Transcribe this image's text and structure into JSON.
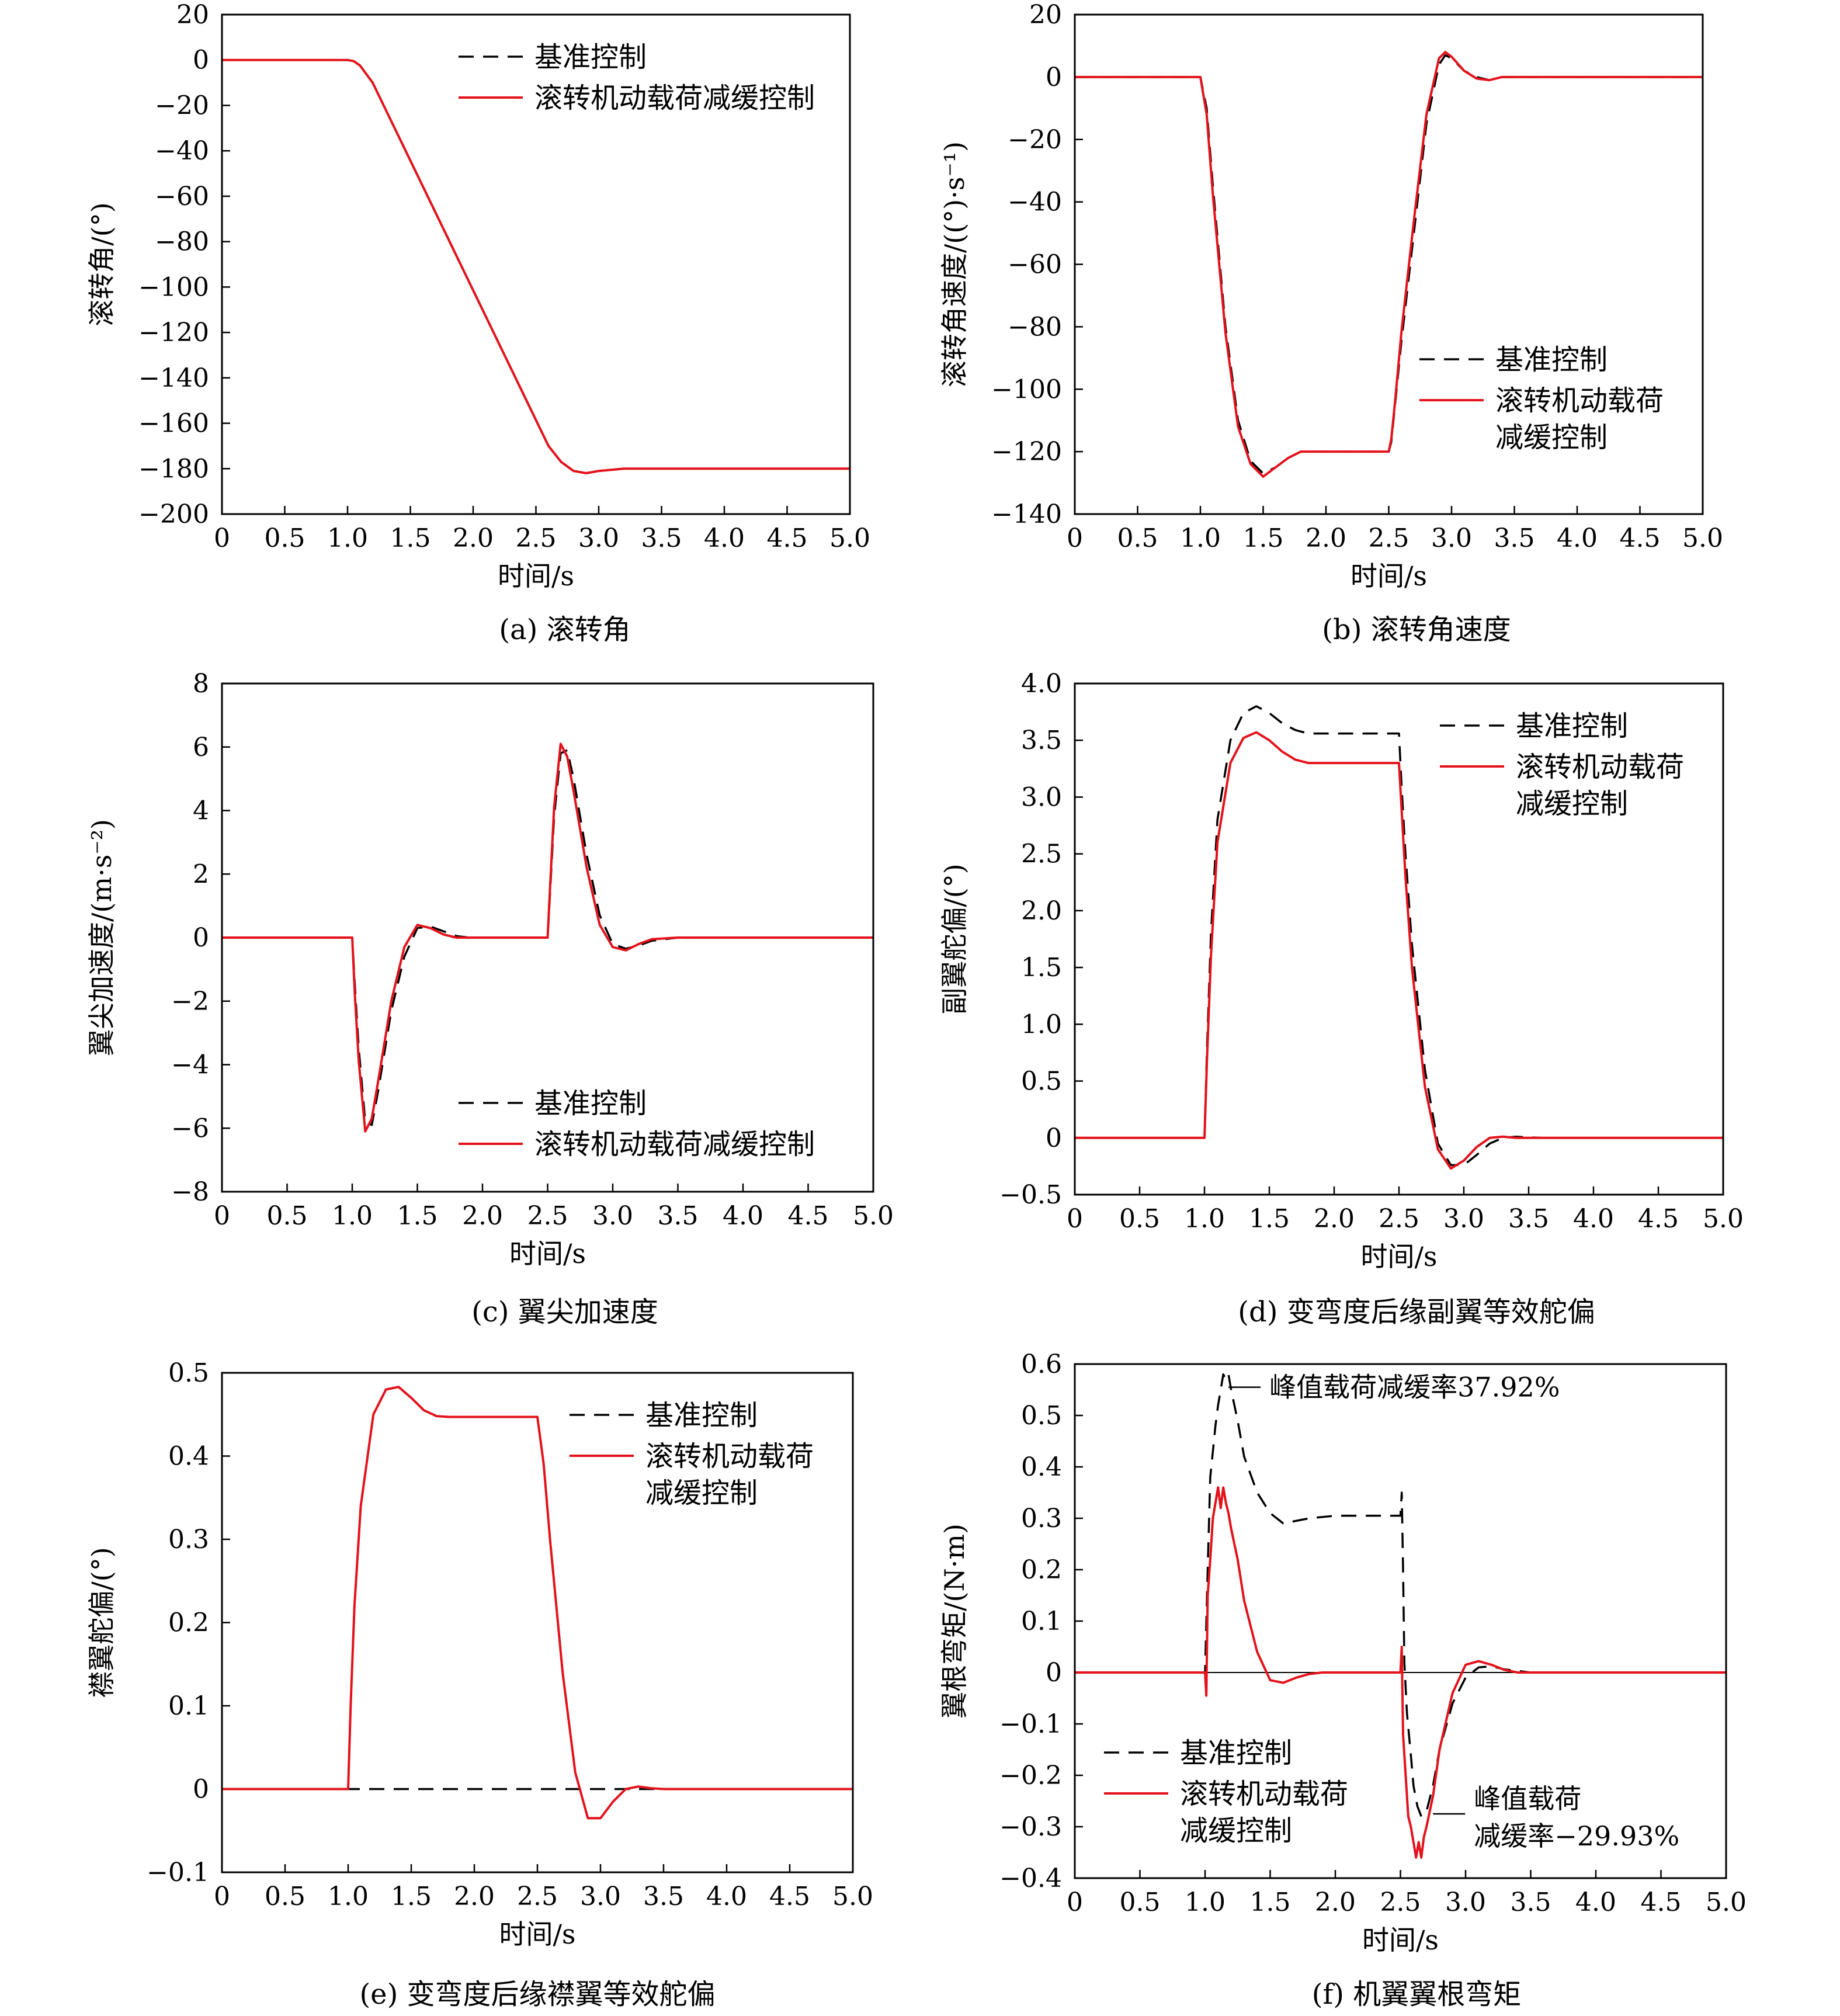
{
  "figure": {
    "legend_baseline": "基准控制",
    "legend_control": "滚转机动载荷减缓控制",
    "legend_control_line1": "滚转机动载荷",
    "legend_control_line2": "减缓控制",
    "xlabel": "时间/s",
    "baseline_color": "#000000",
    "control_color": "#e3121b"
  },
  "chart_data": [
    {
      "id": "a",
      "type": "line",
      "caption": "(a) 滚转角",
      "ylabel": "滚转角/(°)",
      "xlabel": "时间/s",
      "xlim": [
        0,
        5
      ],
      "ylim": [
        -200,
        20
      ],
      "xticks": [
        "0",
        "0.5",
        "1.0",
        "1.5",
        "2.0",
        "2.5",
        "3.0",
        "3.5",
        "4.0",
        "4.5",
        "5.0"
      ],
      "yticks": [
        "20",
        "0",
        "−20",
        "−40",
        "−60",
        "−80",
        "−100",
        "−120",
        "−140",
        "−160",
        "−180",
        "−200"
      ],
      "legend_style": "single",
      "legend_position": "top-right",
      "series": [
        {
          "name": "基准控制",
          "style": "dashed",
          "x": [
            0,
            1.0,
            1.05,
            1.1,
            1.2,
            2.6,
            2.7,
            2.8,
            2.9,
            3.0,
            3.2,
            5.0
          ],
          "y": [
            0,
            0,
            -0.5,
            -2.5,
            -10,
            -170,
            -177,
            -181,
            -182,
            -181,
            -180,
            -180
          ]
        },
        {
          "name": "滚转机动载荷减缓控制",
          "style": "solid",
          "x": [
            0,
            1.0,
            1.05,
            1.1,
            1.2,
            2.6,
            2.7,
            2.8,
            2.9,
            3.0,
            3.2,
            5.0
          ],
          "y": [
            0,
            0,
            -0.5,
            -2.5,
            -10,
            -170,
            -177,
            -181,
            -182,
            -181,
            -180,
            -180
          ]
        }
      ]
    },
    {
      "id": "b",
      "type": "line",
      "caption": "(b) 滚转角速度",
      "ylabel": "滚转角速度/((°)·s⁻¹)",
      "xlabel": "时间/s",
      "xlim": [
        0,
        5
      ],
      "ylim": [
        -140,
        20
      ],
      "xticks": [
        "0",
        "0.5",
        "1.0",
        "1.5",
        "2.0",
        "2.5",
        "3.0",
        "3.5",
        "4.0",
        "4.5",
        "5.0"
      ],
      "yticks": [
        "20",
        "0",
        "−20",
        "−40",
        "−60",
        "−80",
        "−100",
        "−120",
        "−140"
      ],
      "legend_style": "double",
      "legend_position": "lower-right",
      "series": [
        {
          "name": "基准控制",
          "style": "dashed",
          "x": [
            0,
            1.0,
            1.05,
            1.1,
            1.2,
            1.3,
            1.4,
            1.5,
            1.6,
            1.7,
            1.8,
            1.9,
            2.0,
            2.5,
            2.52,
            2.55,
            2.6,
            2.7,
            2.8,
            2.9,
            2.95,
            3.0,
            3.1,
            3.2,
            3.3,
            3.4,
            5.0
          ],
          "y": [
            0,
            0,
            -10,
            -35,
            -80,
            -110,
            -123,
            -127,
            -125,
            -122,
            -120,
            -120,
            -120,
            -120,
            -117,
            -105,
            -85,
            -50,
            -15,
            4,
            7,
            6,
            2,
            0,
            -1,
            0,
            0
          ]
        },
        {
          "name": "滚转机动载荷减缓控制",
          "style": "solid",
          "x": [
            0,
            1.0,
            1.05,
            1.1,
            1.2,
            1.3,
            1.4,
            1.5,
            1.6,
            1.7,
            1.8,
            1.9,
            2.0,
            2.5,
            2.52,
            2.55,
            2.6,
            2.7,
            2.8,
            2.9,
            2.95,
            3.0,
            3.1,
            3.2,
            3.3,
            3.4,
            5.0
          ],
          "y": [
            0,
            0,
            -12,
            -38,
            -82,
            -112,
            -124,
            -128,
            -125,
            -122,
            -120,
            -120,
            -120,
            -120,
            -116,
            -104,
            -82,
            -46,
            -12,
            6,
            8,
            6.5,
            2,
            -0.5,
            -1,
            0,
            0
          ]
        }
      ]
    },
    {
      "id": "c",
      "type": "line",
      "caption": "(c) 翼尖加速度",
      "ylabel": "翼尖加速度/(m·s⁻²)",
      "xlabel": "时间/s",
      "xlim": [
        0,
        5
      ],
      "ylim": [
        -8,
        8
      ],
      "xticks": [
        "0",
        "0.5",
        "1.0",
        "1.5",
        "2.0",
        "2.5",
        "3.0",
        "3.5",
        "4.0",
        "4.5",
        "5.0"
      ],
      "yticks": [
        "8",
        "6",
        "4",
        "2",
        "0",
        "−2",
        "−4",
        "−6",
        "−8"
      ],
      "legend_style": "single",
      "legend_position": "lower-right",
      "series": [
        {
          "name": "基准控制",
          "style": "dashed",
          "x": [
            0,
            1.0,
            1.02,
            1.05,
            1.1,
            1.15,
            1.2,
            1.3,
            1.4,
            1.5,
            1.6,
            1.7,
            1.8,
            1.9,
            2.0,
            2.5,
            2.52,
            2.55,
            2.6,
            2.65,
            2.7,
            2.8,
            2.9,
            3.0,
            3.1,
            3.2,
            3.3,
            3.5,
            5.0
          ],
          "y": [
            0,
            0,
            -1.5,
            -3.5,
            -5.8,
            -5.9,
            -4.8,
            -2.3,
            -0.6,
            0.3,
            0.35,
            0.2,
            0.05,
            0,
            0,
            0,
            1.5,
            3.8,
            5.8,
            5.9,
            5.0,
            2.6,
            0.7,
            -0.2,
            -0.35,
            -0.25,
            -0.1,
            0,
            0
          ]
        },
        {
          "name": "滚转机动载荷减缓控制",
          "style": "solid",
          "x": [
            0,
            1.0,
            1.02,
            1.05,
            1.1,
            1.15,
            1.2,
            1.3,
            1.4,
            1.5,
            1.6,
            1.7,
            1.8,
            1.9,
            2.0,
            2.5,
            2.52,
            2.55,
            2.6,
            2.65,
            2.7,
            2.8,
            2.9,
            3.0,
            3.1,
            3.2,
            3.3,
            3.5,
            5.0
          ],
          "y": [
            0,
            0,
            -1.8,
            -3.9,
            -6.1,
            -5.7,
            -4.5,
            -2.0,
            -0.3,
            0.4,
            0.3,
            0.1,
            0,
            0,
            0,
            0,
            1.7,
            4.1,
            6.1,
            5.7,
            4.6,
            2.2,
            0.4,
            -0.3,
            -0.4,
            -0.2,
            -0.05,
            0,
            0
          ]
        }
      ]
    },
    {
      "id": "d",
      "type": "line",
      "caption": "(d) 变弯度后缘副翼等效舵偏",
      "ylabel": "副翼舵偏/(°)",
      "xlabel": "时间/s",
      "xlim": [
        0,
        5
      ],
      "ylim": [
        -0.5,
        4.0
      ],
      "xticks": [
        "0",
        "0.5",
        "1.0",
        "1.5",
        "2.0",
        "2.5",
        "3.0",
        "3.5",
        "4.0",
        "4.5",
        "5.0"
      ],
      "yticks": [
        "4.0",
        "3.5",
        "3.0",
        "2.5",
        "2.0",
        "1.5",
        "1.0",
        "0.5",
        "0",
        "−0.5"
      ],
      "legend_style": "double",
      "legend_position": "top-right",
      "series": [
        {
          "name": "基准控制",
          "style": "dashed",
          "x": [
            0,
            1.0,
            1.02,
            1.05,
            1.1,
            1.2,
            1.3,
            1.4,
            1.5,
            1.6,
            1.7,
            1.8,
            2.0,
            2.5,
            2.52,
            2.55,
            2.6,
            2.7,
            2.8,
            2.9,
            3.0,
            3.1,
            3.2,
            3.3,
            3.4,
            3.6,
            5.0
          ],
          "y": [
            0,
            0,
            0.8,
            1.8,
            2.8,
            3.5,
            3.74,
            3.8,
            3.74,
            3.65,
            3.59,
            3.56,
            3.56,
            3.56,
            3.1,
            2.5,
            1.7,
            0.6,
            -0.05,
            -0.24,
            -0.24,
            -0.15,
            -0.05,
            0,
            0.01,
            0,
            0
          ]
        },
        {
          "name": "滚转机动载荷减缓控制",
          "style": "solid",
          "x": [
            0,
            1.0,
            1.02,
            1.05,
            1.1,
            1.2,
            1.3,
            1.4,
            1.5,
            1.6,
            1.7,
            1.8,
            2.0,
            2.5,
            2.52,
            2.55,
            2.6,
            2.7,
            2.8,
            2.9,
            3.0,
            3.1,
            3.2,
            3.3,
            3.4,
            3.6,
            5.0
          ],
          "y": [
            0,
            0,
            0.7,
            1.6,
            2.6,
            3.3,
            3.52,
            3.57,
            3.5,
            3.4,
            3.33,
            3.3,
            3.3,
            3.3,
            2.9,
            2.3,
            1.5,
            0.45,
            -0.1,
            -0.27,
            -0.2,
            -0.08,
            0,
            0.01,
            0,
            0,
            0
          ]
        }
      ]
    },
    {
      "id": "e",
      "type": "line",
      "caption": "(e) 变弯度后缘襟翼等效舵偏",
      "ylabel": "襟翼舵偏/(°)",
      "xlabel": "时间/s",
      "xlim": [
        0,
        5
      ],
      "ylim": [
        -0.1,
        0.5
      ],
      "xticks": [
        "0",
        "0.5",
        "1.0",
        "1.5",
        "2.0",
        "2.5",
        "3.0",
        "3.5",
        "4.0",
        "4.5",
        "5.0"
      ],
      "yticks": [
        "0.5",
        "0.4",
        "0.3",
        "0.2",
        "0.1",
        "0",
        "−0.1"
      ],
      "legend_style": "double",
      "legend_position": "top-right",
      "series": [
        {
          "name": "基准控制",
          "style": "dashed",
          "x": [
            0,
            5.0
          ],
          "y": [
            0,
            0
          ]
        },
        {
          "name": "滚转机动载荷减缓控制",
          "style": "solid",
          "x": [
            0,
            1.0,
            1.02,
            1.05,
            1.1,
            1.2,
            1.3,
            1.4,
            1.5,
            1.6,
            1.7,
            1.8,
            2.0,
            2.5,
            2.55,
            2.6,
            2.7,
            2.8,
            2.9,
            3.0,
            3.1,
            3.2,
            3.3,
            3.4,
            3.5,
            5.0
          ],
          "y": [
            0,
            0,
            0.1,
            0.22,
            0.34,
            0.45,
            0.48,
            0.483,
            0.47,
            0.455,
            0.448,
            0.447,
            0.447,
            0.447,
            0.39,
            0.3,
            0.14,
            0.02,
            -0.035,
            -0.035,
            -0.015,
            0,
            0.003,
            0.001,
            0,
            0
          ]
        }
      ]
    },
    {
      "id": "f",
      "type": "line",
      "caption": "(f) 机翼翼根弯矩",
      "ylabel": "翼根弯矩/(N·m)",
      "xlabel": "时间/s",
      "xlim": [
        0,
        5
      ],
      "ylim": [
        -0.4,
        0.6
      ],
      "xticks": [
        "0",
        "0.5",
        "1.0",
        "1.5",
        "2.0",
        "2.5",
        "3.0",
        "3.5",
        "4.0",
        "4.5",
        "5.0"
      ],
      "yticks": [
        "0.6",
        "0.5",
        "0.4",
        "0.3",
        "0.2",
        "0.1",
        "0",
        "−0.1",
        "−0.2",
        "−0.3",
        "−0.4"
      ],
      "legend_style": "double",
      "legend_position": "lower-left",
      "annotations": [
        {
          "text": "峰值载荷减缓率37.92%",
          "x": 1.18,
          "y": 0.555
        },
        {
          "text": "峰值载荷",
          "text2": "减缓率−29.93%",
          "x": 2.75,
          "y": -0.275
        }
      ],
      "series": [
        {
          "name": "基准控制",
          "style": "dashed",
          "x": [
            0,
            1.0,
            1.02,
            1.04,
            1.06,
            1.08,
            1.1,
            1.12,
            1.14,
            1.16,
            1.18,
            1.2,
            1.25,
            1.3,
            1.4,
            1.5,
            1.6,
            1.7,
            1.8,
            2.0,
            2.4,
            2.5,
            2.51,
            2.52,
            2.53,
            2.55,
            2.58,
            2.6,
            2.63,
            2.66,
            2.7,
            2.75,
            2.8,
            2.9,
            3.0,
            3.1,
            3.2,
            3.3,
            3.5,
            5.0
          ],
          "y": [
            0,
            0,
            0.2,
            0.38,
            0.43,
            0.48,
            0.52,
            0.55,
            0.58,
            0.57,
            0.58,
            0.55,
            0.49,
            0.42,
            0.35,
            0.31,
            0.29,
            0.295,
            0.3,
            0.305,
            0.305,
            0.305,
            0.35,
            0.2,
            0.02,
            -0.08,
            -0.16,
            -0.22,
            -0.26,
            -0.28,
            -0.27,
            -0.22,
            -0.15,
            -0.06,
            -0.01,
            0.01,
            0.012,
            0.006,
            0,
            0
          ]
        },
        {
          "name": "滚转机动载荷减缓控制",
          "style": "solid",
          "x": [
            0,
            1.0,
            1.01,
            1.02,
            1.04,
            1.06,
            1.08,
            1.1,
            1.12,
            1.14,
            1.16,
            1.18,
            1.2,
            1.25,
            1.3,
            1.4,
            1.5,
            1.6,
            1.7,
            1.8,
            1.9,
            2.0,
            2.4,
            2.5,
            2.51,
            2.52,
            2.54,
            2.56,
            2.58,
            2.6,
            2.62,
            2.64,
            2.66,
            2.68,
            2.7,
            2.75,
            2.8,
            2.9,
            3.0,
            3.1,
            3.2,
            3.3,
            3.4,
            3.5,
            5.0
          ],
          "y": [
            0,
            0,
            -0.045,
            0.15,
            0.22,
            0.3,
            0.33,
            0.36,
            0.32,
            0.36,
            0.33,
            0.31,
            0.28,
            0.22,
            0.14,
            0.04,
            -0.015,
            -0.02,
            -0.01,
            -0.003,
            0,
            0,
            0,
            0,
            0.05,
            -0.12,
            -0.2,
            -0.28,
            -0.3,
            -0.33,
            -0.36,
            -0.33,
            -0.36,
            -0.32,
            -0.3,
            -0.24,
            -0.15,
            -0.04,
            0.015,
            0.022,
            0.015,
            0.005,
            0,
            0,
            0
          ]
        }
      ]
    }
  ]
}
